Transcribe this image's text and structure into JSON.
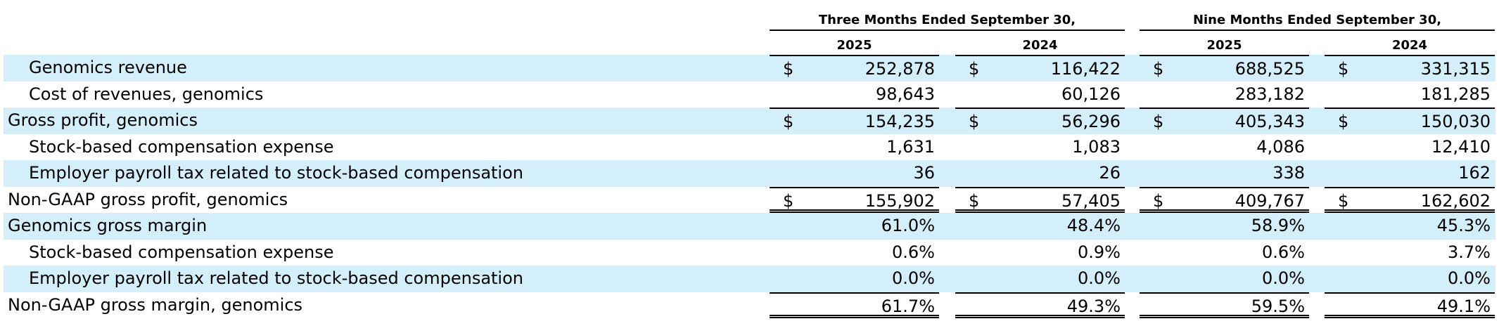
{
  "headers": {
    "three_months": "Three Months Ended September 30,",
    "nine_months": "Nine Months Ended September 30,",
    "years": [
      "2025",
      "2024",
      "2025",
      "2024"
    ]
  },
  "rows": [
    {
      "label": "Genomics revenue",
      "dollar": true,
      "values": [
        "252,878",
        "116,422",
        "688,525",
        "331,315"
      ]
    },
    {
      "label": "Cost of revenues, genomics",
      "dollar": false,
      "values": [
        "98,643",
        "60,126",
        "283,182",
        "181,285"
      ]
    },
    {
      "label": "Gross profit, genomics",
      "dollar": true,
      "values": [
        "154,235",
        "56,296",
        "405,343",
        "150,030"
      ]
    },
    {
      "label": "Stock-based compensation expense",
      "dollar": false,
      "values": [
        "1,631",
        "1,083",
        "4,086",
        "12,410"
      ]
    },
    {
      "label": "Employer payroll tax related to stock-based compensation",
      "dollar": false,
      "values": [
        "36",
        "26",
        "338",
        "162"
      ]
    },
    {
      "label": "Non-GAAP gross profit, genomics",
      "dollar": true,
      "values": [
        "155,902",
        "57,405",
        "409,767",
        "162,602"
      ]
    },
    {
      "label": "Genomics gross margin",
      "dollar": false,
      "values": [
        "61.0%",
        "48.4%",
        "58.9%",
        "45.3%"
      ]
    },
    {
      "label": "Stock-based compensation expense",
      "dollar": false,
      "values": [
        "0.6%",
        "0.9%",
        "0.6%",
        "3.7%"
      ]
    },
    {
      "label": "Employer payroll tax related to stock-based compensation",
      "dollar": false,
      "values": [
        "0.0%",
        "0.0%",
        "0.0%",
        "0.0%"
      ]
    },
    {
      "label": "Non-GAAP gross margin, genomics",
      "dollar": false,
      "values": [
        "61.7%",
        "49.3%",
        "59.5%",
        "49.1%"
      ]
    }
  ],
  "currency_symbol": "$",
  "colors": {
    "row_shade": "#d2effa"
  }
}
